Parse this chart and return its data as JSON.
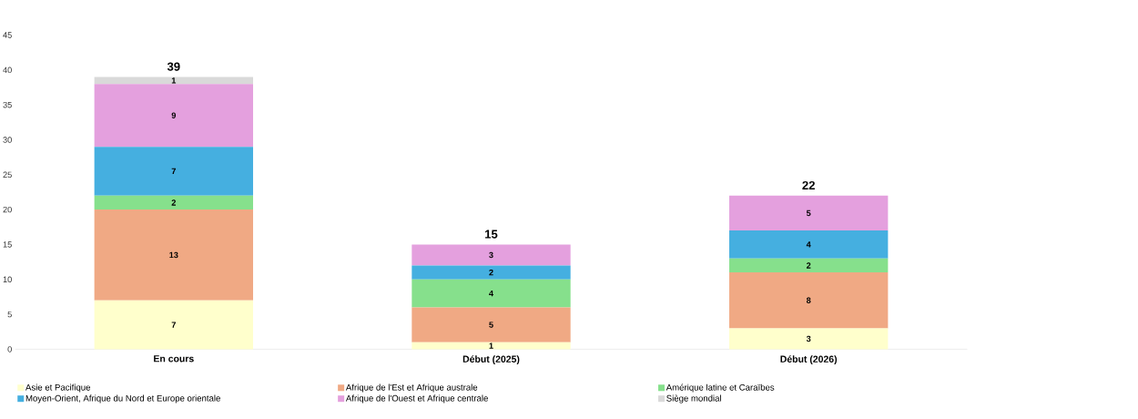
{
  "chart_data": {
    "type": "bar",
    "stacked": true,
    "data_labels": true,
    "legend": "bottom",
    "categories": [
      "En cours",
      "Début (2025)",
      "Début (2026)"
    ],
    "ylim": [
      0,
      45
    ],
    "yticks": [
      0,
      5,
      10,
      15,
      20,
      25,
      30,
      35,
      40,
      45
    ],
    "totals": [
      "39",
      "15",
      "22"
    ],
    "series": [
      {
        "name": "Asie et Pacifique",
        "color": "#ffffcc",
        "values": [
          7,
          1,
          3
        ]
      },
      {
        "name": "Afrique de l'Est et Afrique australe",
        "color": "#f0a984",
        "values": [
          13,
          5,
          8
        ]
      },
      {
        "name": "Amérique latine et Caraïbes",
        "color": "#86e08c",
        "values": [
          2,
          4,
          2
        ]
      },
      {
        "name": "Moyen-Orient, Afrique du Nord et Europe orientale",
        "color": "#45afe0",
        "values": [
          7,
          2,
          4
        ]
      },
      {
        "name": "Afrique de l'Ouest et Afrique centrale",
        "color": "#e4a0de",
        "values": [
          9,
          3,
          5
        ]
      },
      {
        "name": "Siège mondial",
        "color": "#d9d9d9",
        "values": [
          1,
          null,
          null
        ]
      }
    ]
  }
}
